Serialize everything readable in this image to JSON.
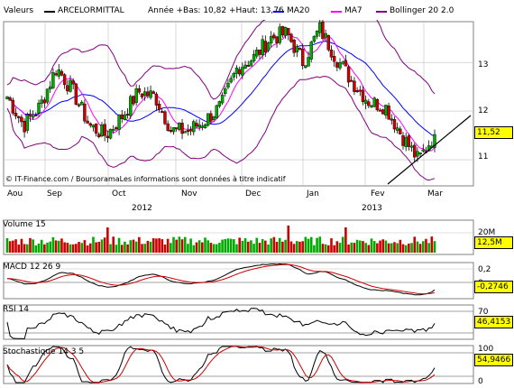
{
  "header": {
    "label": "Valeurs",
    "stock": "ARCELORMITTAL",
    "range": "Année +Bas: 10,82 +Haut: 13,76",
    "legend": [
      {
        "name": "MA20",
        "color": "#0000ff"
      },
      {
        "name": "MA7",
        "color": "#ff00ff"
      },
      {
        "name": "Bollinger 20 2.0",
        "color": "#800080"
      }
    ]
  },
  "footer_credit": "© IT-Finance.com / BoursoramaLes informations sont données à titre indicatif",
  "x_axis": {
    "months": [
      "Aou",
      "Sep",
      "Oct",
      "Nov",
      "Dec",
      "Jan",
      "Fev",
      "Mar"
    ],
    "years": [
      "2012",
      "2013"
    ]
  },
  "panels": {
    "price": {
      "label": "",
      "last_value": "11,52",
      "ticks": [
        "13",
        "12",
        "11"
      ]
    },
    "volume": {
      "label": "Volume 15",
      "last_value": "12,5M",
      "ticks": [
        "20M"
      ]
    },
    "macd": {
      "label": "MACD 12 26 9",
      "last_value": "-0,2746",
      "ticks": [
        "0,2",
        "0"
      ]
    },
    "rsi": {
      "label": "RSI 14",
      "last_value": "46,4153",
      "ticks": [
        "70"
      ]
    },
    "stoch": {
      "label": "Stochastique 14 3 5",
      "last_value": "54,9466",
      "ticks": [
        "100",
        "0"
      ]
    }
  },
  "colors": {
    "up_candle": "#00aa00",
    "down_candle": "#cc0000",
    "ma20": "#0000ff",
    "ma7": "#ff00ff",
    "bollinger": "#800080",
    "value_box": "#ffff00",
    "grid": "#c0c0c0",
    "signal": "#cc0000"
  },
  "chart_data": {
    "type": "line",
    "title": "ARCELORMITTAL",
    "x_range": [
      "Aou 2012",
      "Mar 2013"
    ],
    "price_range": [
      10.82,
      13.76
    ],
    "price_axis": [
      10.5,
      13.8
    ],
    "weekly_close": [
      {
        "x": "Aou",
        "close": 12.3
      },
      {
        "x": "Aou",
        "close": 11.7
      },
      {
        "x": "Aou",
        "close": 12.1
      },
      {
        "x": "Sep",
        "close": 12.9
      },
      {
        "x": "Sep",
        "close": 12.4
      },
      {
        "x": "Sep",
        "close": 11.7
      },
      {
        "x": "Sep",
        "close": 11.5
      },
      {
        "x": "Oct",
        "close": 11.9
      },
      {
        "x": "Oct",
        "close": 12.4
      },
      {
        "x": "Oct",
        "close": 12.3
      },
      {
        "x": "Oct",
        "close": 11.6
      },
      {
        "x": "Nov",
        "close": 11.6
      },
      {
        "x": "Nov",
        "close": 11.8
      },
      {
        "x": "Nov",
        "close": 12.1
      },
      {
        "x": "Nov",
        "close": 12.9
      },
      {
        "x": "Dec",
        "close": 13.1
      },
      {
        "x": "Dec",
        "close": 13.5
      },
      {
        "x": "Dec",
        "close": 13.6
      },
      {
        "x": "Dec",
        "close": 13.0
      },
      {
        "x": "Jan",
        "close": 13.7
      },
      {
        "x": "Jan",
        "close": 13.1
      },
      {
        "x": "Jan",
        "close": 12.6
      },
      {
        "x": "Fev",
        "close": 12.2
      },
      {
        "x": "Fev",
        "close": 12.1
      },
      {
        "x": "Fev",
        "close": 11.5
      },
      {
        "x": "Fev",
        "close": 11.0
      },
      {
        "x": "Mar",
        "close": 11.52
      }
    ],
    "last": {
      "price": 11.52,
      "volume": "12,5M",
      "macd": -0.2746,
      "rsi": 46.4153,
      "stoch": 54.9466
    }
  }
}
